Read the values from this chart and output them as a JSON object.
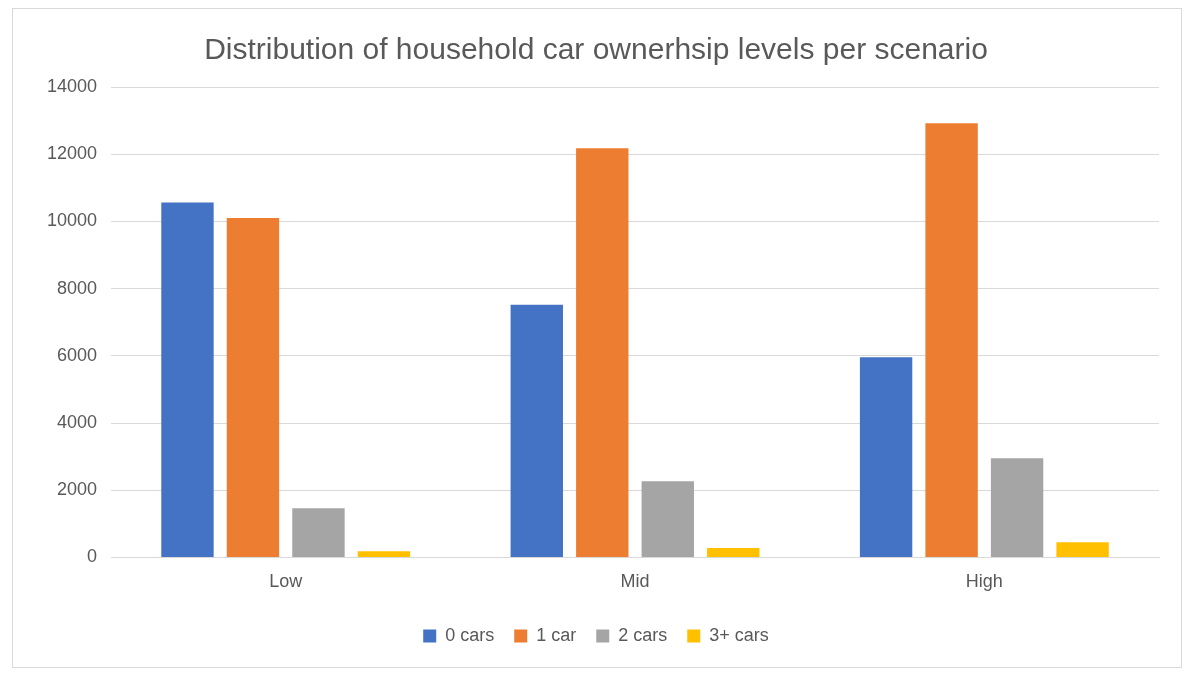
{
  "chart_data": {
    "type": "bar",
    "title": "Distribution of household car ownerhsip levels per scenario",
    "categories": [
      "Low",
      "Mid",
      "High"
    ],
    "series": [
      {
        "name": "0 cars",
        "color": "#4472c4",
        "values": [
          10560,
          7520,
          5960
        ]
      },
      {
        "name": "1 car",
        "color": "#ed7d31",
        "values": [
          10100,
          12180,
          12920
        ]
      },
      {
        "name": "2 cars",
        "color": "#a5a5a5",
        "values": [
          1460,
          2270,
          2950
        ]
      },
      {
        "name": "3+ cars",
        "color": "#ffc000",
        "values": [
          180,
          280,
          450
        ]
      }
    ],
    "ylim": [
      0,
      14000
    ],
    "yticks": [
      0,
      2000,
      4000,
      6000,
      8000,
      10000,
      12000,
      14000
    ],
    "grid": "y",
    "legend": "bottom"
  }
}
